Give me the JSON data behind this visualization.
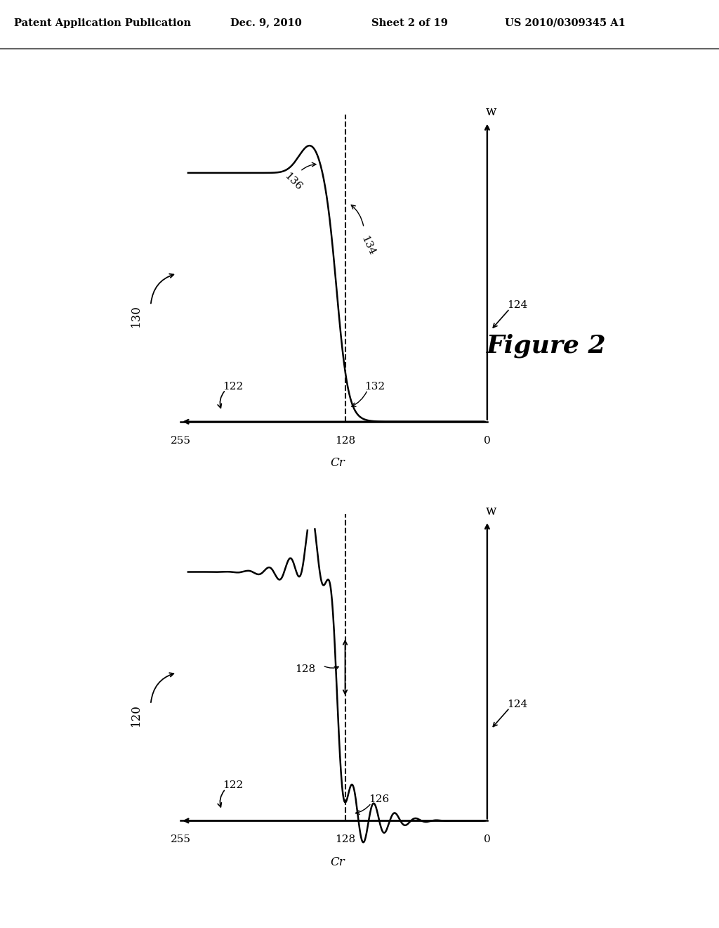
{
  "background_color": "#ffffff",
  "header_text": "Patent Application Publication",
  "header_date": "Dec. 9, 2010",
  "header_sheet": "Sheet 2 of 19",
  "header_patent": "US 2010/0309345 A1",
  "figure_label": "Figure 2",
  "line_color": "#000000",
  "text_color": "#000000"
}
